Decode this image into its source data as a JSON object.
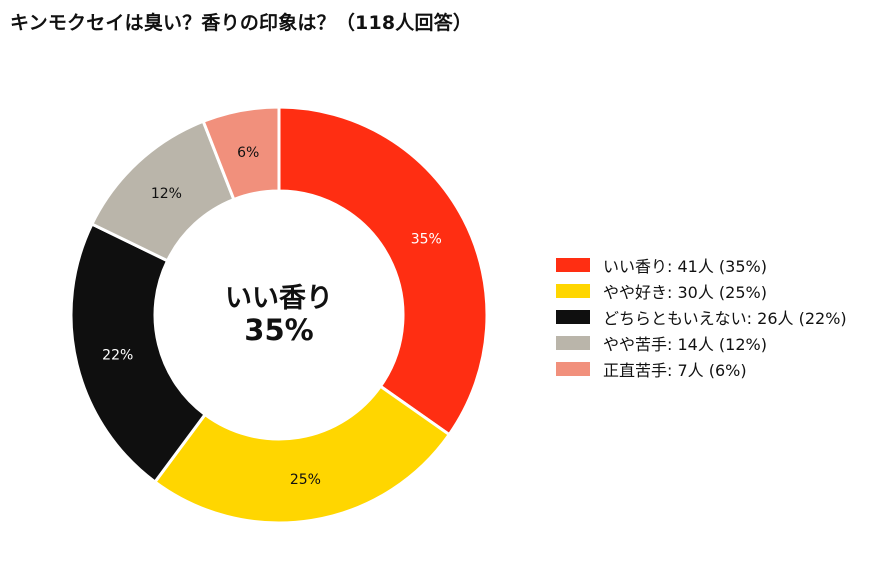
{
  "title": "キンモクセイは臭い？香りの印象は？（118人回答）",
  "chart_data": {
    "type": "pie",
    "variant": "donut",
    "title": "キンモクセイは臭い？香りの印象は？（118人回答）",
    "total": 118,
    "center": {
      "label": "いい香り",
      "value": "35%"
    },
    "legend_position": "right",
    "slices": [
      {
        "name": "いい香り",
        "value": 41,
        "percent_label": "35%",
        "color": "#ff2e12",
        "label_color": "#ffffff",
        "legend_text": "いい香り:  41人 (35%)"
      },
      {
        "name": "やや好き",
        "value": 30,
        "percent_label": "25%",
        "color": "#ffd600",
        "label_color": "#111111",
        "legend_text": "やや好き:  30人 (25%)"
      },
      {
        "name": "どちらともいえない",
        "value": 26,
        "percent_label": "22%",
        "color": "#0f0f0f",
        "label_color": "#ffffff",
        "legend_text": "どちらともいえない:  26人 (22%)"
      },
      {
        "name": "やや苦手",
        "value": 14,
        "percent_label": "12%",
        "color": "#bab5aa",
        "label_color": "#111111",
        "legend_text": "やや苦手:  14人 (12%)"
      },
      {
        "name": "正直苦手",
        "value": 7,
        "percent_label": "6%",
        "color": "#f1907c",
        "label_color": "#111111",
        "legend_text": "正直苦手:  7人 (6%)"
      }
    ]
  }
}
